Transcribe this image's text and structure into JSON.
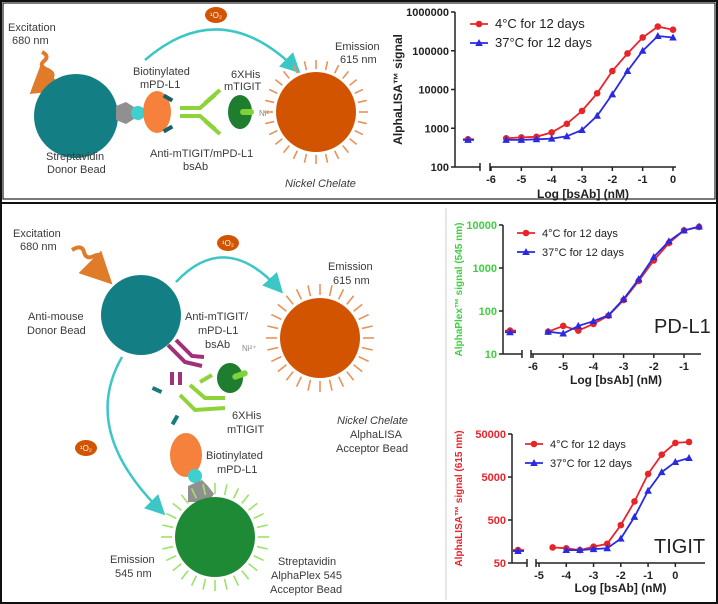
{
  "colors": {
    "series_4C": "#e8242b",
    "series_37C": "#2a2ae0",
    "donor_bead": "#137f84",
    "nickel_bead": "#d35400",
    "alphaplex_bead": "#1f8a35",
    "singlet_oxygen_arrow": "#3cc6c6",
    "pdl1_axis_label": "#3fcf3f",
    "tigit_axis_label": "#e8242b"
  },
  "top_diagram": {
    "excitation": [
      "Excitation",
      "680 nm"
    ],
    "biotinylated": [
      "Biotinylated",
      "mPD-L1"
    ],
    "his": [
      "6XHis",
      "mTIGIT"
    ],
    "emission": [
      "Emission",
      "615 nm"
    ],
    "donor": [
      "Streptavidin",
      "Donor Bead"
    ],
    "bsab": [
      "Anti-mTIGIT/mPD-L1",
      "bsAb"
    ],
    "nickel": "Nickel Chelate",
    "singlet_oxygen": "¹O₂",
    "ni_label": "Ni²⁺"
  },
  "bottom_diagram": {
    "excitation": [
      "Excitation",
      "680 nm"
    ],
    "donor": [
      "Anti-mouse",
      "Donor Bead"
    ],
    "emission615": [
      "Emission",
      "615 nm"
    ],
    "bsab": [
      "Anti-mTIGIT/",
      "mPD-L1",
      "bsAb"
    ],
    "his": [
      "6XHis",
      "mTIGIT"
    ],
    "nickel": [
      "Nickel Chelate",
      "AlphaLISA",
      "Acceptor Bead"
    ],
    "biotinylated": [
      "Biotinylated",
      "mPD-L1"
    ],
    "emission545": [
      "Emission",
      "545 nm"
    ],
    "streptavidin": [
      "Streptavidin",
      "AlphaPlex 545",
      "Acceptor Bead"
    ],
    "singlet_oxygen": "¹O₂",
    "ni_label": "Ni²⁺"
  },
  "chart_data": [
    {
      "type": "line",
      "scale_y": "log",
      "grid": false,
      "legend": "top-left",
      "xlabel": "Log [bsAb] (nM)",
      "ylabel": "AlphaLISA™ signal",
      "xlim": [
        -6,
        0
      ],
      "ylim": [
        100,
        1000000
      ],
      "xticks": [
        "-6",
        "-5",
        "-4",
        "-3",
        "-2",
        "-1",
        "0"
      ],
      "yticks": [
        "100",
        "1000",
        "10000",
        "100000",
        "1000000"
      ],
      "x": [
        -5.5,
        -5,
        -4.5,
        -4,
        -3.5,
        -3,
        -2.5,
        -2,
        -1.5,
        -1,
        -0.5,
        0
      ],
      "series": [
        {
          "name": "4°C for 12 days",
          "blank": 520,
          "values": [
            550,
            580,
            600,
            780,
            1300,
            2800,
            8000,
            30000,
            85000,
            220000,
            420000,
            350000
          ]
        },
        {
          "name": "37°C for 12 days",
          "blank": 500,
          "values": [
            500,
            500,
            520,
            540,
            620,
            900,
            2100,
            7500,
            30000,
            100000,
            240000,
            220000
          ]
        }
      ]
    },
    {
      "type": "line",
      "scale_y": "log",
      "grid": false,
      "legend": "top-left",
      "xlabel": "Log [bsAb] (nM)",
      "ylabel": "AlphaPlex™ signal  (545 nm)",
      "annotation": "PD-L1",
      "xlim": [
        -6,
        -1
      ],
      "ylim": [
        10,
        10000
      ],
      "xticks": [
        "-6",
        "-5",
        "-4",
        "-3",
        "-2",
        "-1"
      ],
      "yticks": [
        "10",
        "100",
        "1000",
        "10000"
      ],
      "x": [
        -5.5,
        -5,
        -4.5,
        -4,
        -3.5,
        -3,
        -2.5,
        -2,
        -1.5,
        -1,
        -0.5
      ],
      "series": [
        {
          "name": "4°C for 12 days",
          "blank": 35,
          "values": [
            33,
            45,
            35,
            50,
            78,
            180,
            500,
            1500,
            3800,
            7500,
            9000
          ]
        },
        {
          "name": "37°C for 12 days",
          "blank": 32,
          "values": [
            33,
            30,
            45,
            58,
            80,
            190,
            550,
            1800,
            4200,
            7500,
            9200
          ]
        }
      ]
    },
    {
      "type": "line",
      "scale_y": "log",
      "grid": false,
      "legend": "top-left",
      "xlabel": "Log [bsAb] (nM)",
      "ylabel": "AlphaLISA™ signal (615 nm)",
      "annotation": "TIGIT",
      "xlim": [
        -5,
        0.5
      ],
      "ylim": [
        50,
        50000
      ],
      "xticks": [
        "-5",
        "-4",
        "-3",
        "-2",
        "-1",
        "0"
      ],
      "yticks": [
        "50",
        "500",
        "5000",
        "50000"
      ],
      "x": [
        -4.5,
        -4,
        -3.5,
        -3,
        -2.5,
        -2,
        -1.5,
        -1,
        -0.5,
        0,
        0.5
      ],
      "series": [
        {
          "name": "4°C for 12 days",
          "blank": 100,
          "values": [
            115,
            110,
            100,
            120,
            140,
            380,
            1350,
            5900,
            16500,
            31000,
            32600
          ]
        },
        {
          "name": "37°C for 12 days",
          "blank": 95,
          "values": [
            null,
            100,
            100,
            105,
            110,
            185,
            590,
            2400,
            6500,
            11200,
            13800
          ]
        }
      ]
    }
  ]
}
